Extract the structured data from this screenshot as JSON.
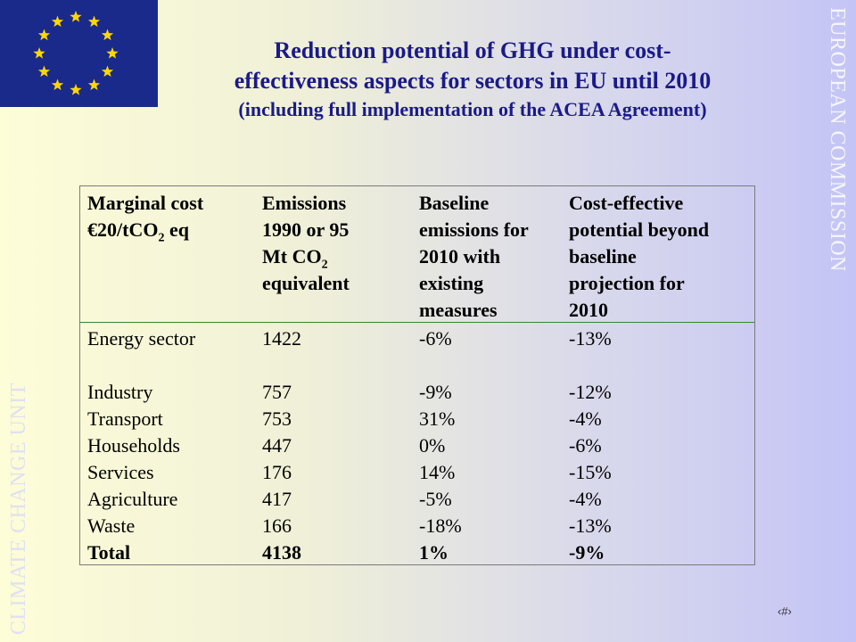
{
  "title": {
    "line1": "Reduction potential of GHG under cost-",
    "line2": "effectiveness aspects for sectors in EU until 2010",
    "line3": "(including full implementation of the ACEA Agreement)"
  },
  "side_right_text": "EUROPEAN COMMISSION",
  "side_left_text": "CLIMATE CHANGE UNIT",
  "flag_icon": "eu-flag-icon",
  "colors": {
    "title": "#1a1a8a",
    "flag": "#1a2a8a",
    "stars": "#ffd700",
    "separator": "#2e8b2e"
  },
  "table": {
    "headers": [
      {
        "pre": "Marginal cost",
        "l2a": "€20/tCO",
        "l2sub": "2",
        "l2b": " eq"
      },
      {
        "l1": "Emissions",
        "l2": "1990 or 95",
        "l3a": "Mt CO",
        "l3sub": "2",
        "l4": "equivalent"
      },
      {
        "l1": "Baseline",
        "l2": "emissions for",
        "l3": "2010 with",
        "l4": "existing",
        "l5": "measures"
      },
      {
        "l1": "Cost-effective",
        "l2": "potential beyond",
        "l3": "baseline",
        "l4": "projection for",
        "l5": "2010"
      }
    ],
    "rows": [
      {
        "sector": "Energy sector",
        "emissions": "1422",
        "baseline": "-6%",
        "potential": "-13%"
      },
      {
        "sector": "Industry",
        "emissions": "757",
        "baseline": "-9%",
        "potential": "-12%"
      },
      {
        "sector": "Transport",
        "emissions": "753",
        "baseline": "31%",
        "potential": "-4%"
      },
      {
        "sector": "Households",
        "emissions": "447",
        "baseline": "0%",
        "potential": "-6%"
      },
      {
        "sector": "Services",
        "emissions": "176",
        "baseline": "14%",
        "potential": "-15%"
      },
      {
        "sector": "Agriculture",
        "emissions": "417",
        "baseline": "-5%",
        "potential": "-4%"
      },
      {
        "sector": "Waste",
        "emissions": "166",
        "baseline": "-18%",
        "potential": "-13%"
      }
    ],
    "total": {
      "sector": "Total",
      "emissions": "4138",
      "baseline": "1%",
      "potential": "-9%"
    }
  },
  "page_number": "‹#›"
}
